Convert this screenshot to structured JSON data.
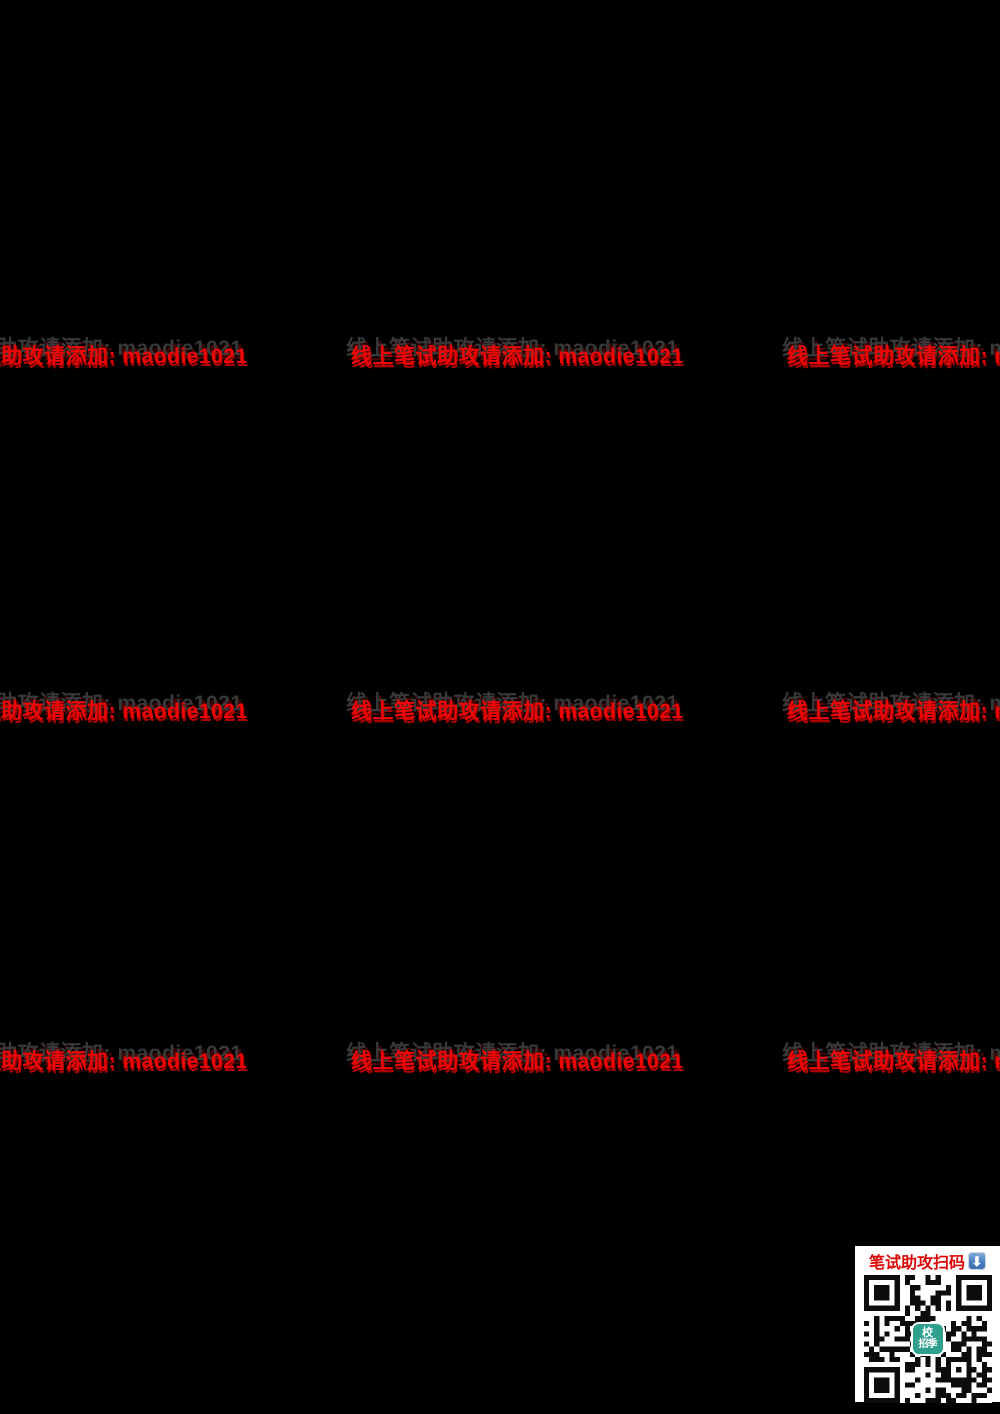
{
  "background": "#000000",
  "watermark": {
    "text": "线上笔试助攻请添加: maodie1021",
    "color": "#ef0505",
    "shadow_color": "#383838"
  },
  "qr_panel": {
    "caption": "笔试助攻扫码",
    "caption_color": "#dd0404",
    "download_icon": "⬇",
    "icon_color": "#4a7fc0",
    "logo_line1": "校",
    "logo_line2": "招季",
    "logo_color": "#2fa08d"
  }
}
